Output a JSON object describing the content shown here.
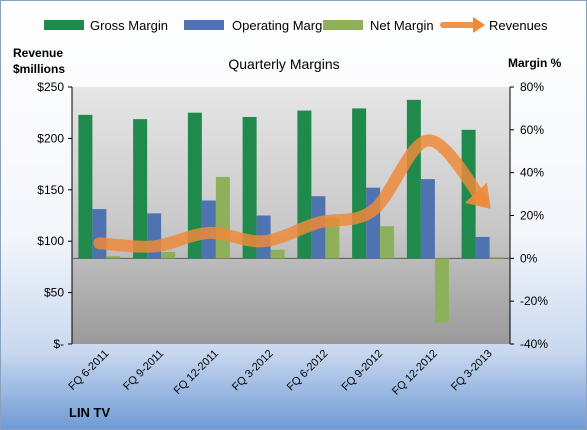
{
  "chart_data": {
    "type": "bar",
    "title": "Quarterly Margins",
    "left_axis_label_line1": "Revenue",
    "left_axis_label_line2": "$millions",
    "right_axis_label": "Margin %",
    "left_ticks": [
      "$-",
      "$50",
      "$100",
      "$150",
      "$200",
      "$250"
    ],
    "right_ticks": [
      "-40%",
      "-20%",
      "0%",
      "20%",
      "40%",
      "60%",
      "80%"
    ],
    "ylim_right": [
      -40,
      80
    ],
    "ylim_left": [
      0,
      250
    ],
    "categories": [
      "FQ 6-2011",
      "FQ 9-2011",
      "FQ 12-2011",
      "FQ 3-2012",
      "FQ 6-2012",
      "FQ 9-2012",
      "FQ 12-2012",
      "FQ 3-2013"
    ],
    "series": [
      {
        "name": "Gross Margin",
        "axis": "right",
        "kind": "bar",
        "color": "#1f8a4c",
        "values": [
          67,
          65,
          68,
          66,
          69,
          70,
          74,
          60
        ]
      },
      {
        "name": "Operating Margin",
        "axis": "right",
        "kind": "bar",
        "color": "#4f73b0",
        "values": [
          23,
          21,
          27,
          20,
          29,
          33,
          37,
          10
        ]
      },
      {
        "name": "Net Margin",
        "axis": "right",
        "kind": "bar",
        "color": "#8fb05a",
        "values": [
          1,
          3,
          38,
          4,
          19,
          15,
          -30,
          0.5
        ]
      },
      {
        "name": "Revenues",
        "axis": "left",
        "kind": "arrow-line",
        "color": "#ed8a3a",
        "values": [
          98,
          95,
          108,
          100,
          118,
          130,
          198,
          140
        ]
      }
    ],
    "grid": false,
    "legend_position": "top"
  },
  "footer": {
    "brand": "LIN TV"
  }
}
